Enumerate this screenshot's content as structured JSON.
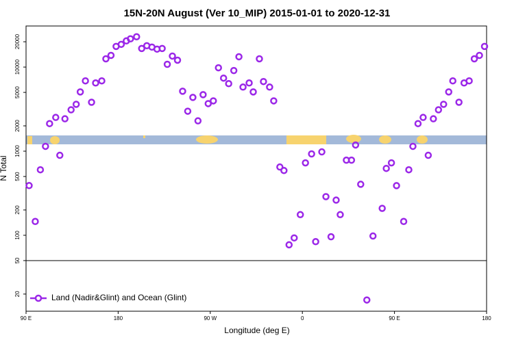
{
  "chart_data": {
    "type": "scatter",
    "title": "15N-20N August (Ver 10_MIP)   2015-01-01 to 2020-12-31",
    "x_label": "Longitude (deg E)",
    "y_label": "N Total",
    "log_y": true,
    "legend": "bottom left",
    "hline": 50,
    "xlim": [
      90,
      540
    ],
    "xticks": [
      {
        "value": 90,
        "label": "90 E"
      },
      {
        "value": 180,
        "label": "180"
      },
      {
        "value": 270,
        "label": "90 W"
      },
      {
        "value": 360,
        "label": "0"
      },
      {
        "value": 450,
        "label": "90 E"
      },
      {
        "value": 540,
        "label": "180"
      }
    ],
    "ylim": [
      12.5,
      30800
    ],
    "yticks": [
      20,
      50,
      100,
      200,
      500,
      1000,
      2000,
      5000,
      10000,
      20000
    ],
    "series": [
      {
        "name": "Land (Nadir&Glint) and Ocean (Glint)",
        "color": "#9b27e8",
        "x": [
          93,
          99,
          104,
          109,
          113,
          119,
          123,
          128,
          134,
          139,
          143,
          148,
          154,
          158,
          164,
          168,
          173,
          178,
          183,
          188,
          192,
          198,
          203,
          208,
          213,
          218,
          223,
          228,
          233,
          238,
          243,
          248,
          253,
          258,
          263,
          268,
          273,
          278,
          283,
          288,
          293,
          298,
          302,
          308,
          312,
          318,
          322,
          328,
          332,
          338,
          342,
          347,
          352,
          358,
          363,
          369,
          373,
          379,
          383,
          388,
          393,
          397,
          403,
          408,
          412,
          417,
          423,
          429,
          438,
          442,
          447,
          452,
          459,
          464,
          468,
          473,
          478,
          483,
          488,
          493,
          498,
          503,
          507,
          513,
          518,
          523,
          528,
          533,
          538
        ],
        "values": [
          390,
          146,
          601,
          1141,
          2128,
          2520,
          893,
          2428,
          3103,
          3609,
          5067,
          6856,
          3818,
          6477,
          6856,
          12540,
          13780,
          17610,
          18640,
          20480,
          21680,
          22940,
          16640,
          17950,
          17290,
          16340,
          16640,
          10790,
          13520,
          12080,
          5164,
          2987,
          4360,
          2294,
          4700,
          3680,
          3966,
          9812,
          7390,
          6356,
          9096,
          13270,
          5783,
          6477,
          5067,
          12540,
          6730,
          5783,
          3966,
          648,
          589,
          77,
          93,
          176,
          726,
          928,
          84,
          981,
          288,
          96,
          262,
          176,
          782,
          782,
          1185,
          404,
          17,
          98,
          209,
          624,
          726,
          389,
          146,
          601,
          1141,
          2128,
          2520,
          893,
          2428,
          3103,
          3609,
          5067,
          6856,
          3818,
          6477,
          6856,
          12540,
          13780,
          17610
        ]
      }
    ]
  }
}
